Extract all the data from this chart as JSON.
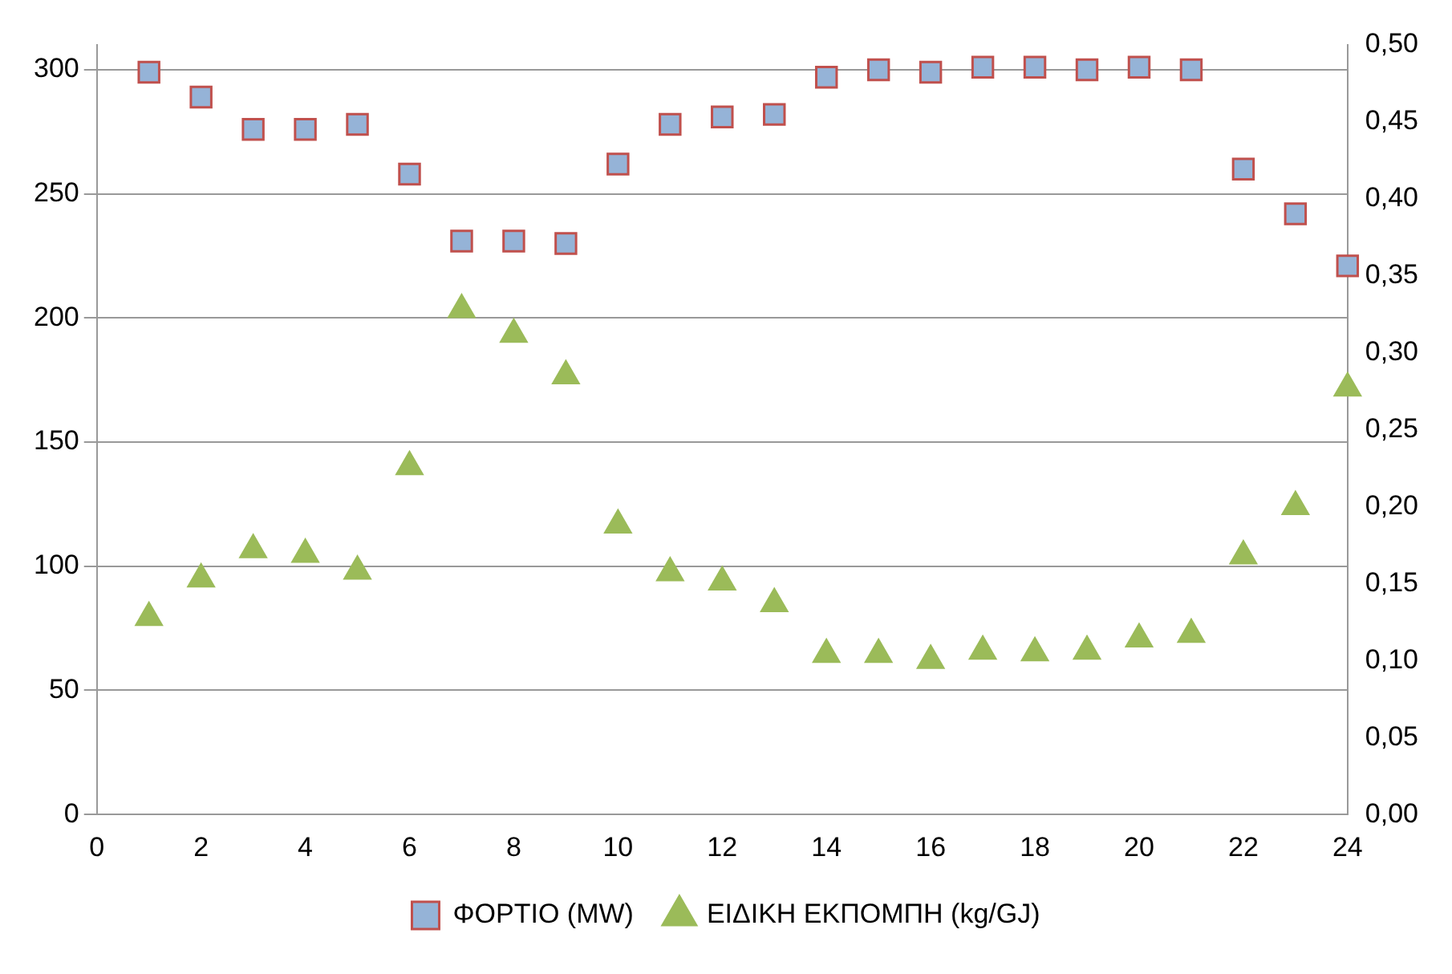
{
  "chart_data": {
    "type": "scatter",
    "x": [
      1,
      2,
      3,
      4,
      5,
      6,
      7,
      8,
      9,
      10,
      11,
      12,
      13,
      14,
      15,
      16,
      17,
      18,
      19,
      20,
      21,
      22,
      23,
      24
    ],
    "series": [
      {
        "name": "ΦΟΡΤΙΟ (MW)",
        "color": "#95b3d7",
        "marker": "square",
        "values": [
          299,
          289,
          276,
          276,
          278,
          258,
          231,
          231,
          230,
          262,
          278,
          281,
          282,
          297,
          300,
          299,
          301,
          301,
          300,
          301,
          300,
          260,
          242,
          221
        ]
      },
      {
        "name": "ΕΙΔΙΚΗ ΕΚΠΟΜΠΗ (kg/GJ)",
        "color": "#9bbb59",
        "marker": "triangle",
        "axis": "y2",
        "values": [
          0.128,
          0.153,
          0.172,
          0.169,
          0.158,
          0.226,
          0.328,
          0.312,
          0.285,
          0.188,
          0.157,
          0.151,
          0.137,
          0.104,
          0.104,
          0.1,
          0.106,
          0.105,
          0.106,
          0.114,
          0.117,
          0.168,
          0.2,
          0.277
        ]
      }
    ],
    "xlim": [
      0,
      24
    ],
    "xticks": [
      0,
      2,
      4,
      6,
      8,
      10,
      12,
      14,
      16,
      18,
      20,
      22,
      24
    ],
    "ylim": [
      0,
      310
    ],
    "yticks": [
      0,
      50,
      100,
      150,
      200,
      250,
      300
    ],
    "y2lim": [
      0,
      0.5
    ],
    "y2ticks": [
      {
        "value": 0,
        "label": "0,00"
      },
      {
        "value": 0.05,
        "label": "0,05"
      },
      {
        "value": 0.1,
        "label": "0,10"
      },
      {
        "value": 0.15,
        "label": "0,15"
      },
      {
        "value": 0.2,
        "label": "0,20"
      },
      {
        "value": 0.25,
        "label": "0,25"
      },
      {
        "value": 0.3,
        "label": "0,30"
      },
      {
        "value": 0.35,
        "label": "0,35"
      },
      {
        "value": 0.4,
        "label": "0,40"
      },
      {
        "value": 0.45,
        "label": "0,45"
      },
      {
        "value": 0.5,
        "label": "0,50"
      }
    ],
    "grid": "y",
    "legend": "bottom"
  }
}
